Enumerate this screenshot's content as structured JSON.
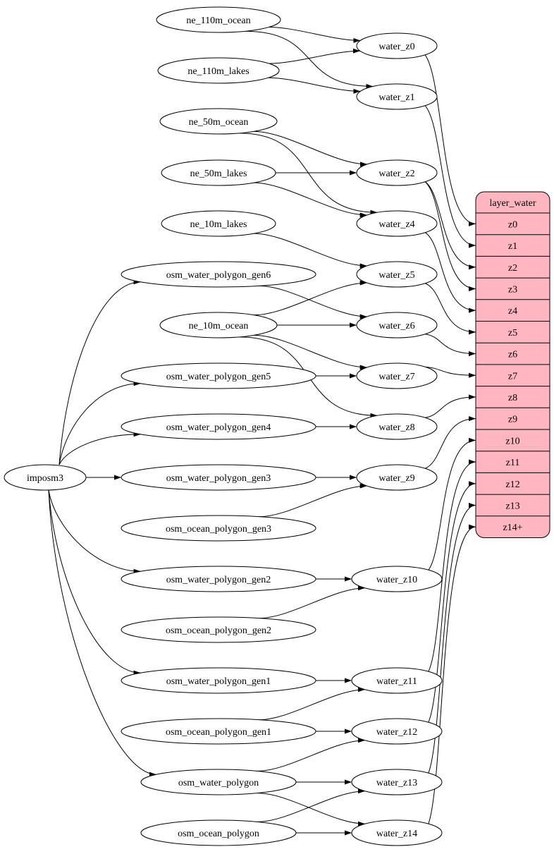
{
  "colors": {
    "record_fill": "#ffb6c1",
    "stroke": "#000000",
    "background": "#ffffff"
  },
  "nodes": [
    {
      "id": "ne_110m_ocean",
      "label": "ne_110m_ocean"
    },
    {
      "id": "ne_110m_lakes",
      "label": "ne_110m_lakes"
    },
    {
      "id": "ne_50m_ocean",
      "label": "ne_50m_ocean"
    },
    {
      "id": "ne_50m_lakes",
      "label": "ne_50m_lakes"
    },
    {
      "id": "ne_10m_lakes",
      "label": "ne_10m_lakes"
    },
    {
      "id": "osm_water_polygon_gen6",
      "label": "osm_water_polygon_gen6"
    },
    {
      "id": "ne_10m_ocean",
      "label": "ne_10m_ocean"
    },
    {
      "id": "osm_water_polygon_gen5",
      "label": "osm_water_polygon_gen5"
    },
    {
      "id": "osm_water_polygon_gen4",
      "label": "osm_water_polygon_gen4"
    },
    {
      "id": "osm_water_polygon_gen3",
      "label": "osm_water_polygon_gen3"
    },
    {
      "id": "osm_ocean_polygon_gen3",
      "label": "osm_ocean_polygon_gen3"
    },
    {
      "id": "osm_water_polygon_gen2",
      "label": "osm_water_polygon_gen2"
    },
    {
      "id": "osm_ocean_polygon_gen2",
      "label": "osm_ocean_polygon_gen2"
    },
    {
      "id": "osm_water_polygon_gen1",
      "label": "osm_water_polygon_gen1"
    },
    {
      "id": "osm_ocean_polygon_gen1",
      "label": "osm_ocean_polygon_gen1"
    },
    {
      "id": "osm_water_polygon",
      "label": "osm_water_polygon"
    },
    {
      "id": "osm_ocean_polygon",
      "label": "osm_ocean_polygon"
    },
    {
      "id": "imposm3",
      "label": "imposm3"
    },
    {
      "id": "water_z0",
      "label": "water_z0"
    },
    {
      "id": "water_z1",
      "label": "water_z1"
    },
    {
      "id": "water_z2",
      "label": "water_z2"
    },
    {
      "id": "water_z4",
      "label": "water_z4"
    },
    {
      "id": "water_z5",
      "label": "water_z5"
    },
    {
      "id": "water_z6",
      "label": "water_z6"
    },
    {
      "id": "water_z7",
      "label": "water_z7"
    },
    {
      "id": "water_z8",
      "label": "water_z8"
    },
    {
      "id": "water_z9",
      "label": "water_z9"
    },
    {
      "id": "water_z10",
      "label": "water_z10"
    },
    {
      "id": "water_z11",
      "label": "water_z11"
    },
    {
      "id": "water_z12",
      "label": "water_z12"
    },
    {
      "id": "water_z13",
      "label": "water_z13"
    },
    {
      "id": "water_z14",
      "label": "water_z14"
    }
  ],
  "record": {
    "id": "layer_water",
    "title": "layer_water",
    "fields": [
      "z0",
      "z1",
      "z2",
      "z3",
      "z4",
      "z5",
      "z6",
      "z7",
      "z8",
      "z9",
      "z10",
      "z11",
      "z12",
      "z13",
      "z14+"
    ]
  },
  "edges": [
    [
      "ne_110m_ocean",
      "water_z0"
    ],
    [
      "ne_110m_ocean",
      "water_z1"
    ],
    [
      "ne_110m_lakes",
      "water_z0"
    ],
    [
      "ne_110m_lakes",
      "water_z1"
    ],
    [
      "ne_50m_ocean",
      "water_z2"
    ],
    [
      "ne_50m_ocean",
      "water_z4"
    ],
    [
      "ne_50m_lakes",
      "water_z2"
    ],
    [
      "ne_50m_lakes",
      "water_z4"
    ],
    [
      "ne_10m_lakes",
      "water_z5"
    ],
    [
      "osm_water_polygon_gen6",
      "water_z6"
    ],
    [
      "ne_10m_ocean",
      "water_z5"
    ],
    [
      "ne_10m_ocean",
      "water_z6"
    ],
    [
      "ne_10m_ocean",
      "water_z7"
    ],
    [
      "ne_10m_ocean",
      "water_z8"
    ],
    [
      "osm_water_polygon_gen5",
      "water_z7"
    ],
    [
      "osm_water_polygon_gen4",
      "water_z8"
    ],
    [
      "osm_water_polygon_gen3",
      "water_z9"
    ],
    [
      "osm_ocean_polygon_gen3",
      "water_z9"
    ],
    [
      "osm_water_polygon_gen2",
      "water_z10"
    ],
    [
      "osm_ocean_polygon_gen2",
      "water_z10"
    ],
    [
      "osm_water_polygon_gen1",
      "water_z11"
    ],
    [
      "osm_ocean_polygon_gen1",
      "water_z11"
    ],
    [
      "osm_ocean_polygon_gen1",
      "water_z12"
    ],
    [
      "osm_water_polygon",
      "water_z12"
    ],
    [
      "osm_water_polygon",
      "water_z13"
    ],
    [
      "osm_water_polygon",
      "water_z14"
    ],
    [
      "osm_ocean_polygon",
      "water_z13"
    ],
    [
      "osm_ocean_polygon",
      "water_z14"
    ],
    [
      "imposm3",
      "osm_water_polygon_gen6"
    ],
    [
      "imposm3",
      "osm_water_polygon_gen5"
    ],
    [
      "imposm3",
      "osm_water_polygon_gen4"
    ],
    [
      "imposm3",
      "osm_water_polygon_gen3"
    ],
    [
      "imposm3",
      "osm_water_polygon_gen2"
    ],
    [
      "imposm3",
      "osm_water_polygon_gen1"
    ],
    [
      "imposm3",
      "osm_water_polygon"
    ],
    [
      "water_z0",
      "layer_water:z0"
    ],
    [
      "water_z1",
      "layer_water:z1"
    ],
    [
      "water_z2",
      "layer_water:z2"
    ],
    [
      "water_z2",
      "layer_water:z3"
    ],
    [
      "water_z4",
      "layer_water:z4"
    ],
    [
      "water_z5",
      "layer_water:z5"
    ],
    [
      "water_z6",
      "layer_water:z6"
    ],
    [
      "water_z7",
      "layer_water:z7"
    ],
    [
      "water_z8",
      "layer_water:z8"
    ],
    [
      "water_z9",
      "layer_water:z9"
    ],
    [
      "water_z10",
      "layer_water:z10"
    ],
    [
      "water_z11",
      "layer_water:z11"
    ],
    [
      "water_z12",
      "layer_water:z12"
    ],
    [
      "water_z13",
      "layer_water:z13"
    ],
    [
      "water_z14",
      "layer_water:z14+"
    ]
  ]
}
